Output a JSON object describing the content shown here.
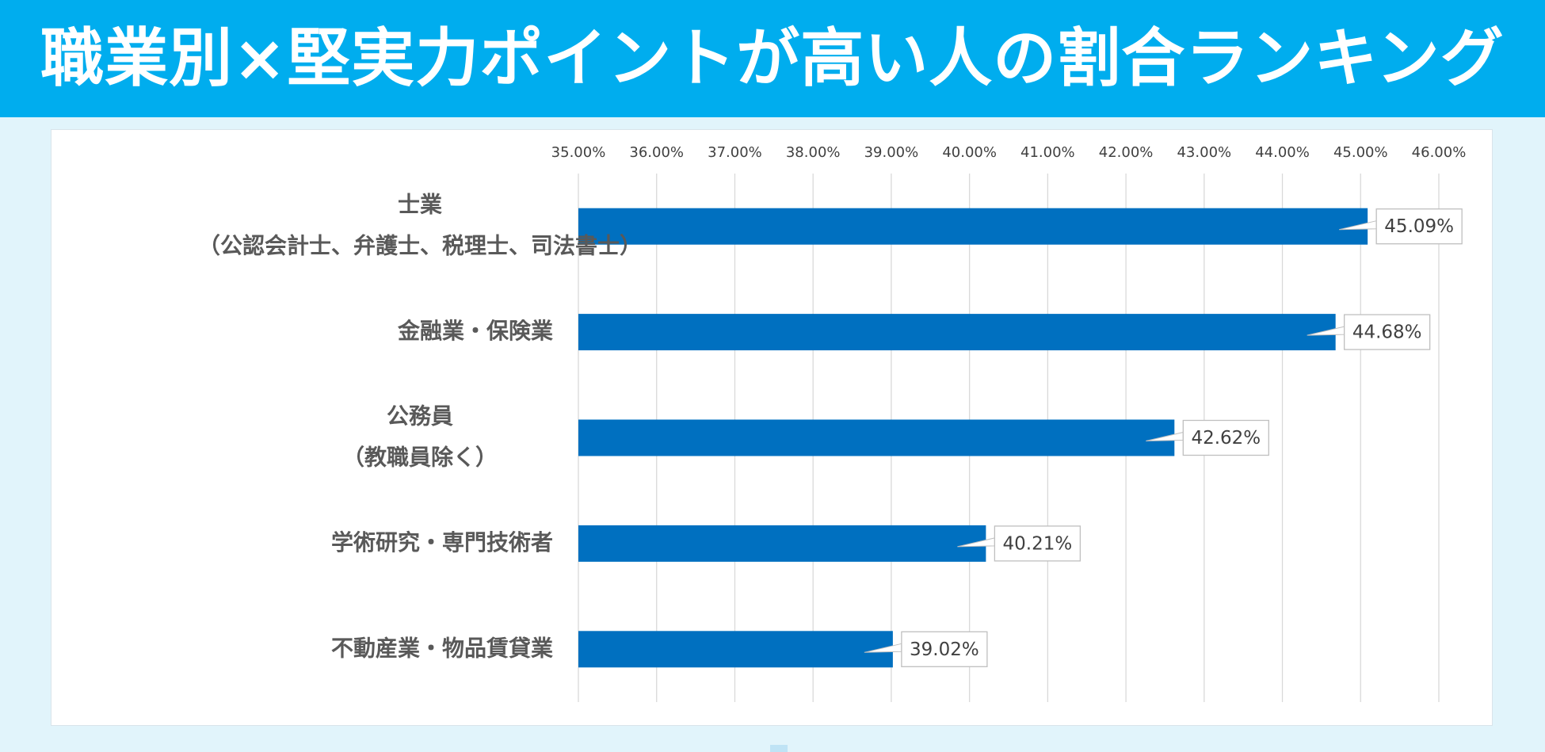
{
  "header": {
    "title": "職業別×堅実力ポイントが高い人の割合ランキング"
  },
  "colors": {
    "header_bg": "#00adee",
    "page_bg": "#e1f4fb",
    "bar": "#0070c0",
    "label_text": "#595959",
    "tick_text": "#404040",
    "grid": "#d9d9d9"
  },
  "chart_data": {
    "type": "bar",
    "orientation": "horizontal",
    "title": "",
    "xlabel": "",
    "ylabel": "",
    "xlim": [
      0.35,
      0.46
    ],
    "x_ticks": [
      "35.00%",
      "36.00%",
      "37.00%",
      "38.00%",
      "39.00%",
      "40.00%",
      "41.00%",
      "42.00%",
      "43.00%",
      "44.00%",
      "45.00%",
      "46.00%"
    ],
    "x_axis_position": "top",
    "grid": true,
    "legend": "none",
    "categories": [
      [
        "士業",
        "（公認会計士、弁護士、税理士、司法書士）"
      ],
      [
        "金融業・保険業"
      ],
      [
        "公務員",
        "（教職員除く）"
      ],
      [
        "学術研究・専門技術者"
      ],
      [
        "不動産業・物品賃貸業"
      ]
    ],
    "values": [
      0.4509,
      0.4468,
      0.4262,
      0.4021,
      0.3902
    ],
    "data_labels": [
      "45.09%",
      "44.68%",
      "42.62%",
      "40.21%",
      "39.02%"
    ]
  }
}
